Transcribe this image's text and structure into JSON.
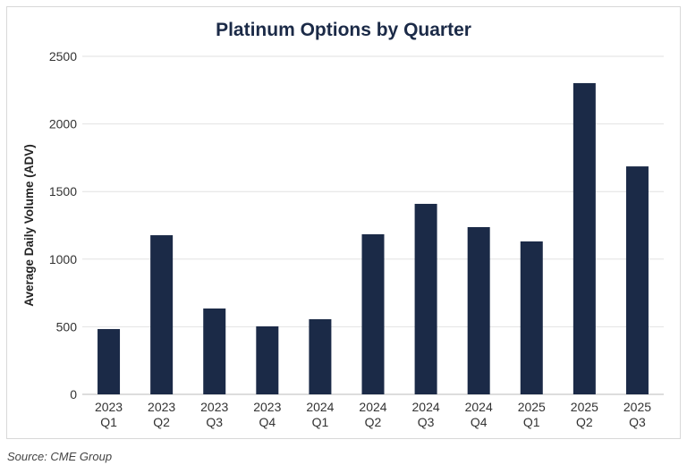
{
  "chart_data": {
    "type": "bar",
    "title": "Platinum Options by Quarter",
    "xlabel": "",
    "ylabel": "Average Daily Volume (ADV)",
    "ylim": [
      0,
      2500
    ],
    "yticks": [
      0,
      500,
      1000,
      1500,
      2000,
      2500
    ],
    "grid": true,
    "categories": [
      [
        "2023",
        "Q1"
      ],
      [
        "2023",
        "Q2"
      ],
      [
        "2023",
        "Q3"
      ],
      [
        "2023",
        "Q4"
      ],
      [
        "2024",
        "Q1"
      ],
      [
        "2024",
        "Q2"
      ],
      [
        "2024",
        "Q3"
      ],
      [
        "2024",
        "Q4"
      ],
      [
        "2025",
        "Q1"
      ],
      [
        "2025",
        "Q2"
      ],
      [
        "2025",
        "Q3"
      ]
    ],
    "values": [
      483,
      1177,
      635,
      503,
      556,
      1184,
      1409,
      1237,
      1131,
      2302,
      1686
    ],
    "bar_color": "#1b2a47",
    "source": "Source: CME Group"
  }
}
